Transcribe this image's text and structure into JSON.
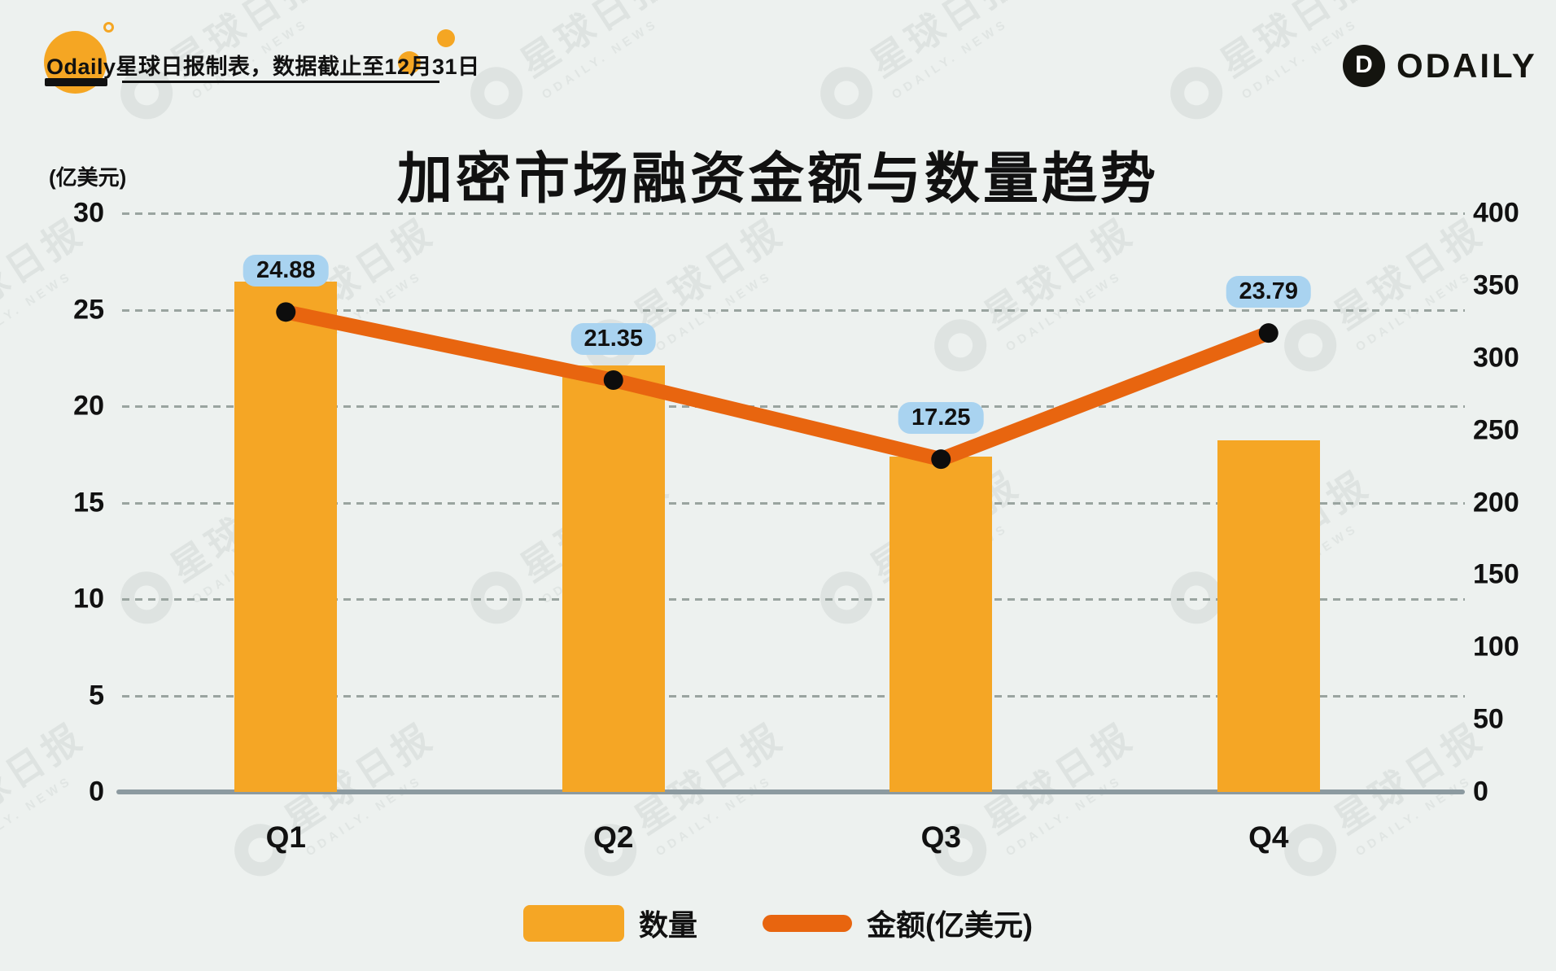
{
  "header": {
    "credit": "Odaily星球日报制表，数据截止至12月31日",
    "brand": "ODAILY",
    "brand_mark_letter": "D",
    "accent_color": "#F5A623"
  },
  "chart_data": {
    "type": "combo",
    "title": "加密市场融资金额与数量趋势",
    "categories": [
      "Q1",
      "Q2",
      "Q3",
      "Q4"
    ],
    "series": [
      {
        "name": "数量",
        "type": "bar",
        "axis": "right",
        "color": "#F5A625",
        "values": [
          353,
          295,
          232,
          243
        ]
      },
      {
        "name": "金额(亿美元)",
        "type": "line",
        "axis": "left",
        "color": "#E8650F",
        "point_color": "#0d0d0d",
        "values": [
          24.88,
          21.35,
          17.25,
          23.79
        ],
        "labels": [
          "24.88",
          "21.35",
          "17.25",
          "23.79"
        ]
      }
    ],
    "left_axis": {
      "unit": "(亿美元)",
      "min": 0,
      "max": 30,
      "ticks": [
        30,
        25,
        20,
        15,
        10,
        5,
        0
      ]
    },
    "right_axis": {
      "min": 0,
      "max": 400,
      "ticks": [
        400,
        350,
        300,
        250,
        200,
        150,
        100,
        50,
        0
      ]
    },
    "grid": "horizontal-dashed-at-left-ticks",
    "legend_position": "bottom-center",
    "value_label_bubble_color": "#A9D3F0"
  },
  "legend": {
    "items": [
      {
        "label": "数量",
        "swatch": "bar"
      },
      {
        "label": "金额(亿美元)",
        "swatch": "line"
      }
    ]
  },
  "watermark": {
    "cn": "星球日报",
    "en": "ODAILY. NEWS"
  }
}
